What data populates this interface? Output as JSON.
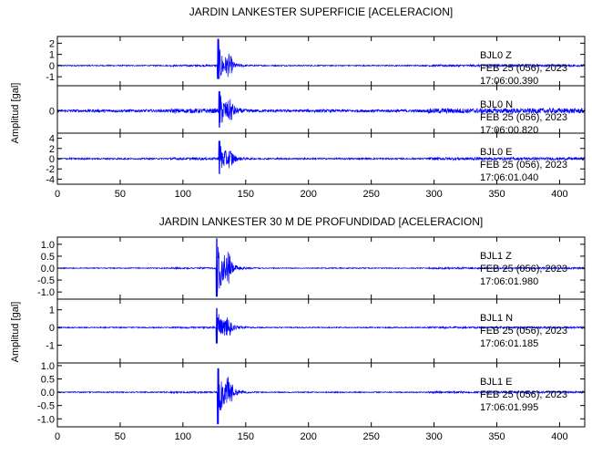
{
  "chart_data": [
    {
      "type": "line",
      "title": "JARDIN LANKESTER SUPERFICIE [ACELERACION]",
      "ylabel": "Amplitud [gal]",
      "xlabel": "",
      "xlim": [
        0,
        420
      ],
      "xticks": [
        0,
        50,
        100,
        150,
        200,
        250,
        300,
        350,
        400
      ],
      "color": "#0000ff",
      "grid": false,
      "traces": [
        {
          "station": "BJL0",
          "component": "Z",
          "date": "FEB 25 (056), 2023",
          "time": "17:06:00.390",
          "ylim": [
            -1.8,
            2.6
          ],
          "yticks": [
            -1,
            0,
            1,
            2
          ],
          "event_start": 128,
          "peak_min": -1.2,
          "peak_max": 2.4,
          "noise": 0.05
        },
        {
          "station": "BJL0",
          "component": "N",
          "date": "FEB 25 (056), 2023",
          "time": "17:06:00.820",
          "ylim": [
            -0.8,
            0.9
          ],
          "yticks": [
            0
          ],
          "event_start": 129,
          "peak_min": -0.6,
          "peak_max": 0.7,
          "noise": 0.05
        },
        {
          "station": "BJL0",
          "component": "E",
          "date": "FEB 25 (056), 2023",
          "time": "17:06:01.040",
          "ylim": [
            -5,
            5
          ],
          "yticks": [
            -4,
            -2,
            0,
            2,
            4
          ],
          "event_start": 129,
          "peak_min": -3,
          "peak_max": 3.5,
          "noise": 0.15
        }
      ]
    },
    {
      "type": "line",
      "title": "JARDIN LANKESTER 30 M DE PROFUNDIDAD [ACELERACION]",
      "ylabel": "Amplitud [gal]",
      "xlabel": "",
      "xlim": [
        0,
        420
      ],
      "xticks": [
        0,
        50,
        100,
        150,
        200,
        250,
        300,
        350,
        400
      ],
      "color": "#0000ff",
      "grid": false,
      "traces": [
        {
          "station": "BJL1",
          "component": "Z",
          "date": "FEB 25 (056), 2023",
          "time": "17:06:01.980",
          "ylim": [
            -1.3,
            1.3
          ],
          "yticks": [
            -1.0,
            -0.5,
            0.0,
            0.5,
            1.0
          ],
          "event_start": 127,
          "peak_min": -1.2,
          "peak_max": 1.25,
          "noise": 0.02
        },
        {
          "station": "BJL1",
          "component": "N",
          "date": "FEB 25 (056), 2023",
          "time": "17:06:01.185",
          "ylim": [
            -2,
            1.6
          ],
          "yticks": [
            -1,
            0,
            1
          ],
          "event_start": 127,
          "peak_min": -0.9,
          "peak_max": 1.1,
          "noise": 0.03
        },
        {
          "station": "BJL1",
          "component": "E",
          "date": "FEB 25 (056), 2023",
          "time": "17:06:01.995",
          "ylim": [
            -1.3,
            1.1
          ],
          "yticks": [
            -1.0,
            -0.5,
            0.0,
            0.5,
            1.0
          ],
          "event_start": 128,
          "peak_min": -1.2,
          "peak_max": 0.9,
          "noise": 0.02
        }
      ]
    }
  ]
}
